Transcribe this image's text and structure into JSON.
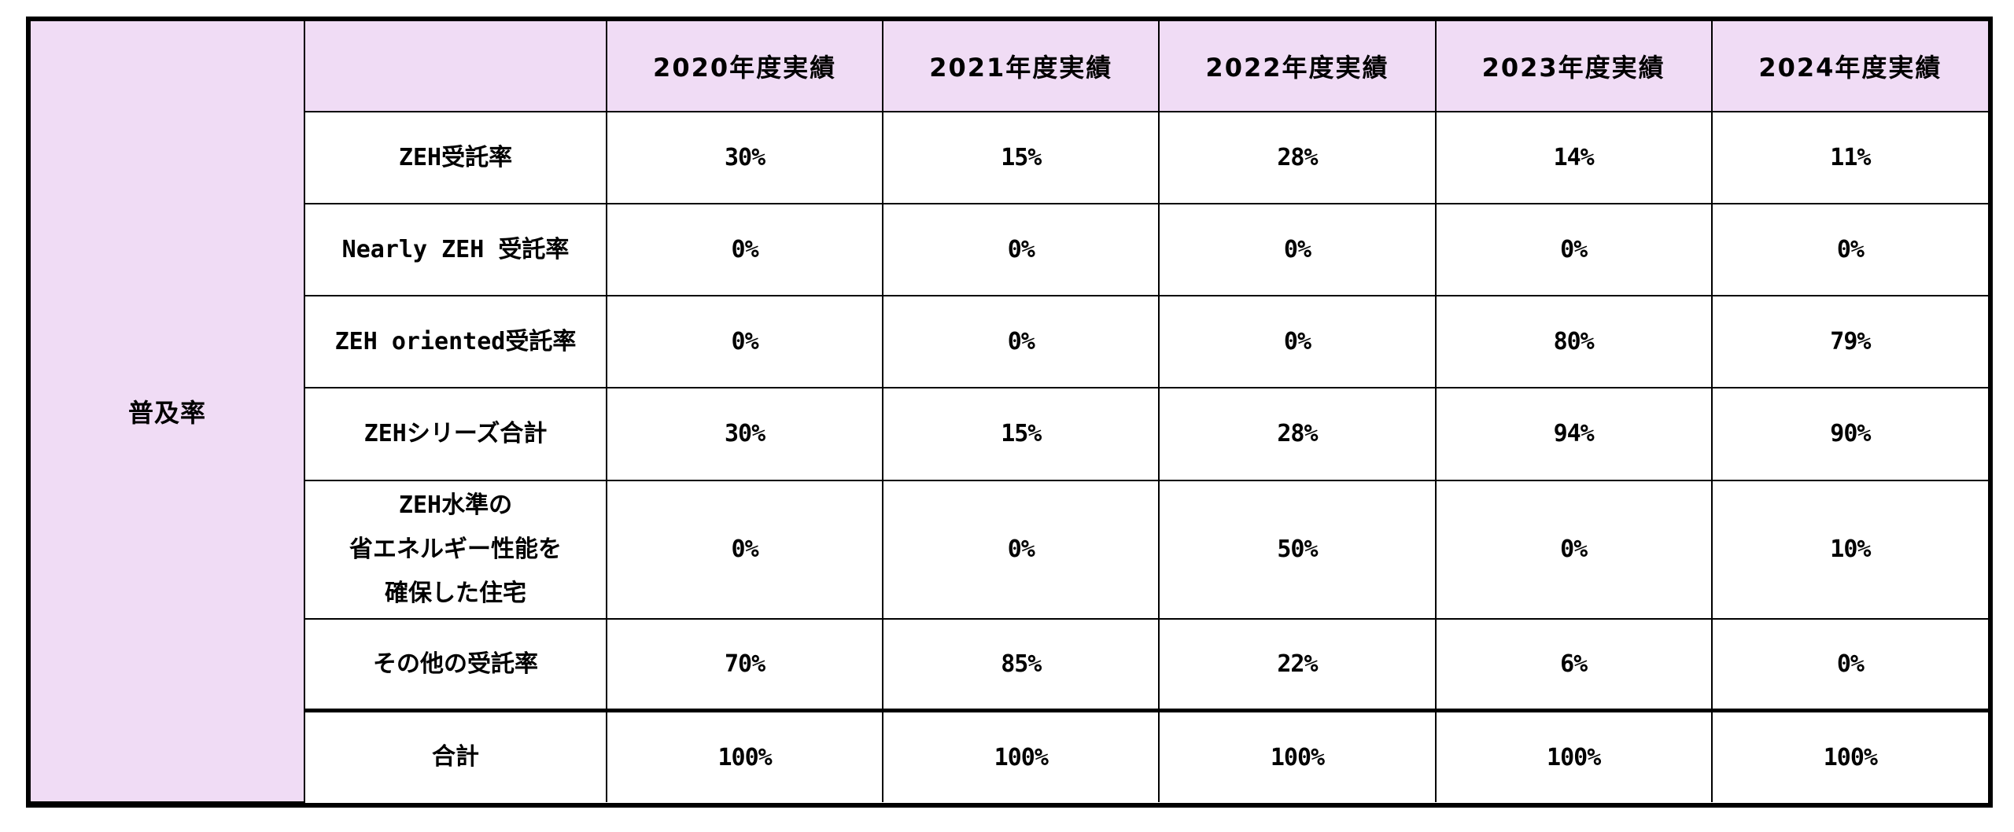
{
  "table": {
    "category": "普及率",
    "years": [
      "2020年度実績",
      "2021年度実績",
      "2022年度実績",
      "2023年度実績",
      "2024年度実績"
    ],
    "rows": [
      {
        "label": "ZEH受託率",
        "values": [
          "30%",
          "15%",
          "28%",
          "14%",
          "11%"
        ]
      },
      {
        "label": "Nearly ZEH 受託率",
        "values": [
          "0%",
          "0%",
          "0%",
          "0%",
          "0%"
        ]
      },
      {
        "label": "ZEH oriented受託率",
        "values": [
          "0%",
          "0%",
          "0%",
          "80%",
          "79%"
        ]
      },
      {
        "label": "ZEHシリーズ合計",
        "values": [
          "30%",
          "15%",
          "28%",
          "94%",
          "90%"
        ]
      },
      {
        "label_lines": [
          "ZEH水準の",
          "省エネルギー性能を",
          "確保した住宅"
        ],
        "values": [
          "0%",
          "0%",
          "50%",
          "0%",
          "10%"
        ]
      },
      {
        "label": "その他の受託率",
        "values": [
          "70%",
          "85%",
          "22%",
          "6%",
          "0%"
        ]
      }
    ],
    "total": {
      "label": "合計",
      "values": [
        "100%",
        "100%",
        "100%",
        "100%",
        "100%"
      ]
    }
  },
  "colors": {
    "header_bg": "#f0dcf5",
    "border": "#000000"
  }
}
